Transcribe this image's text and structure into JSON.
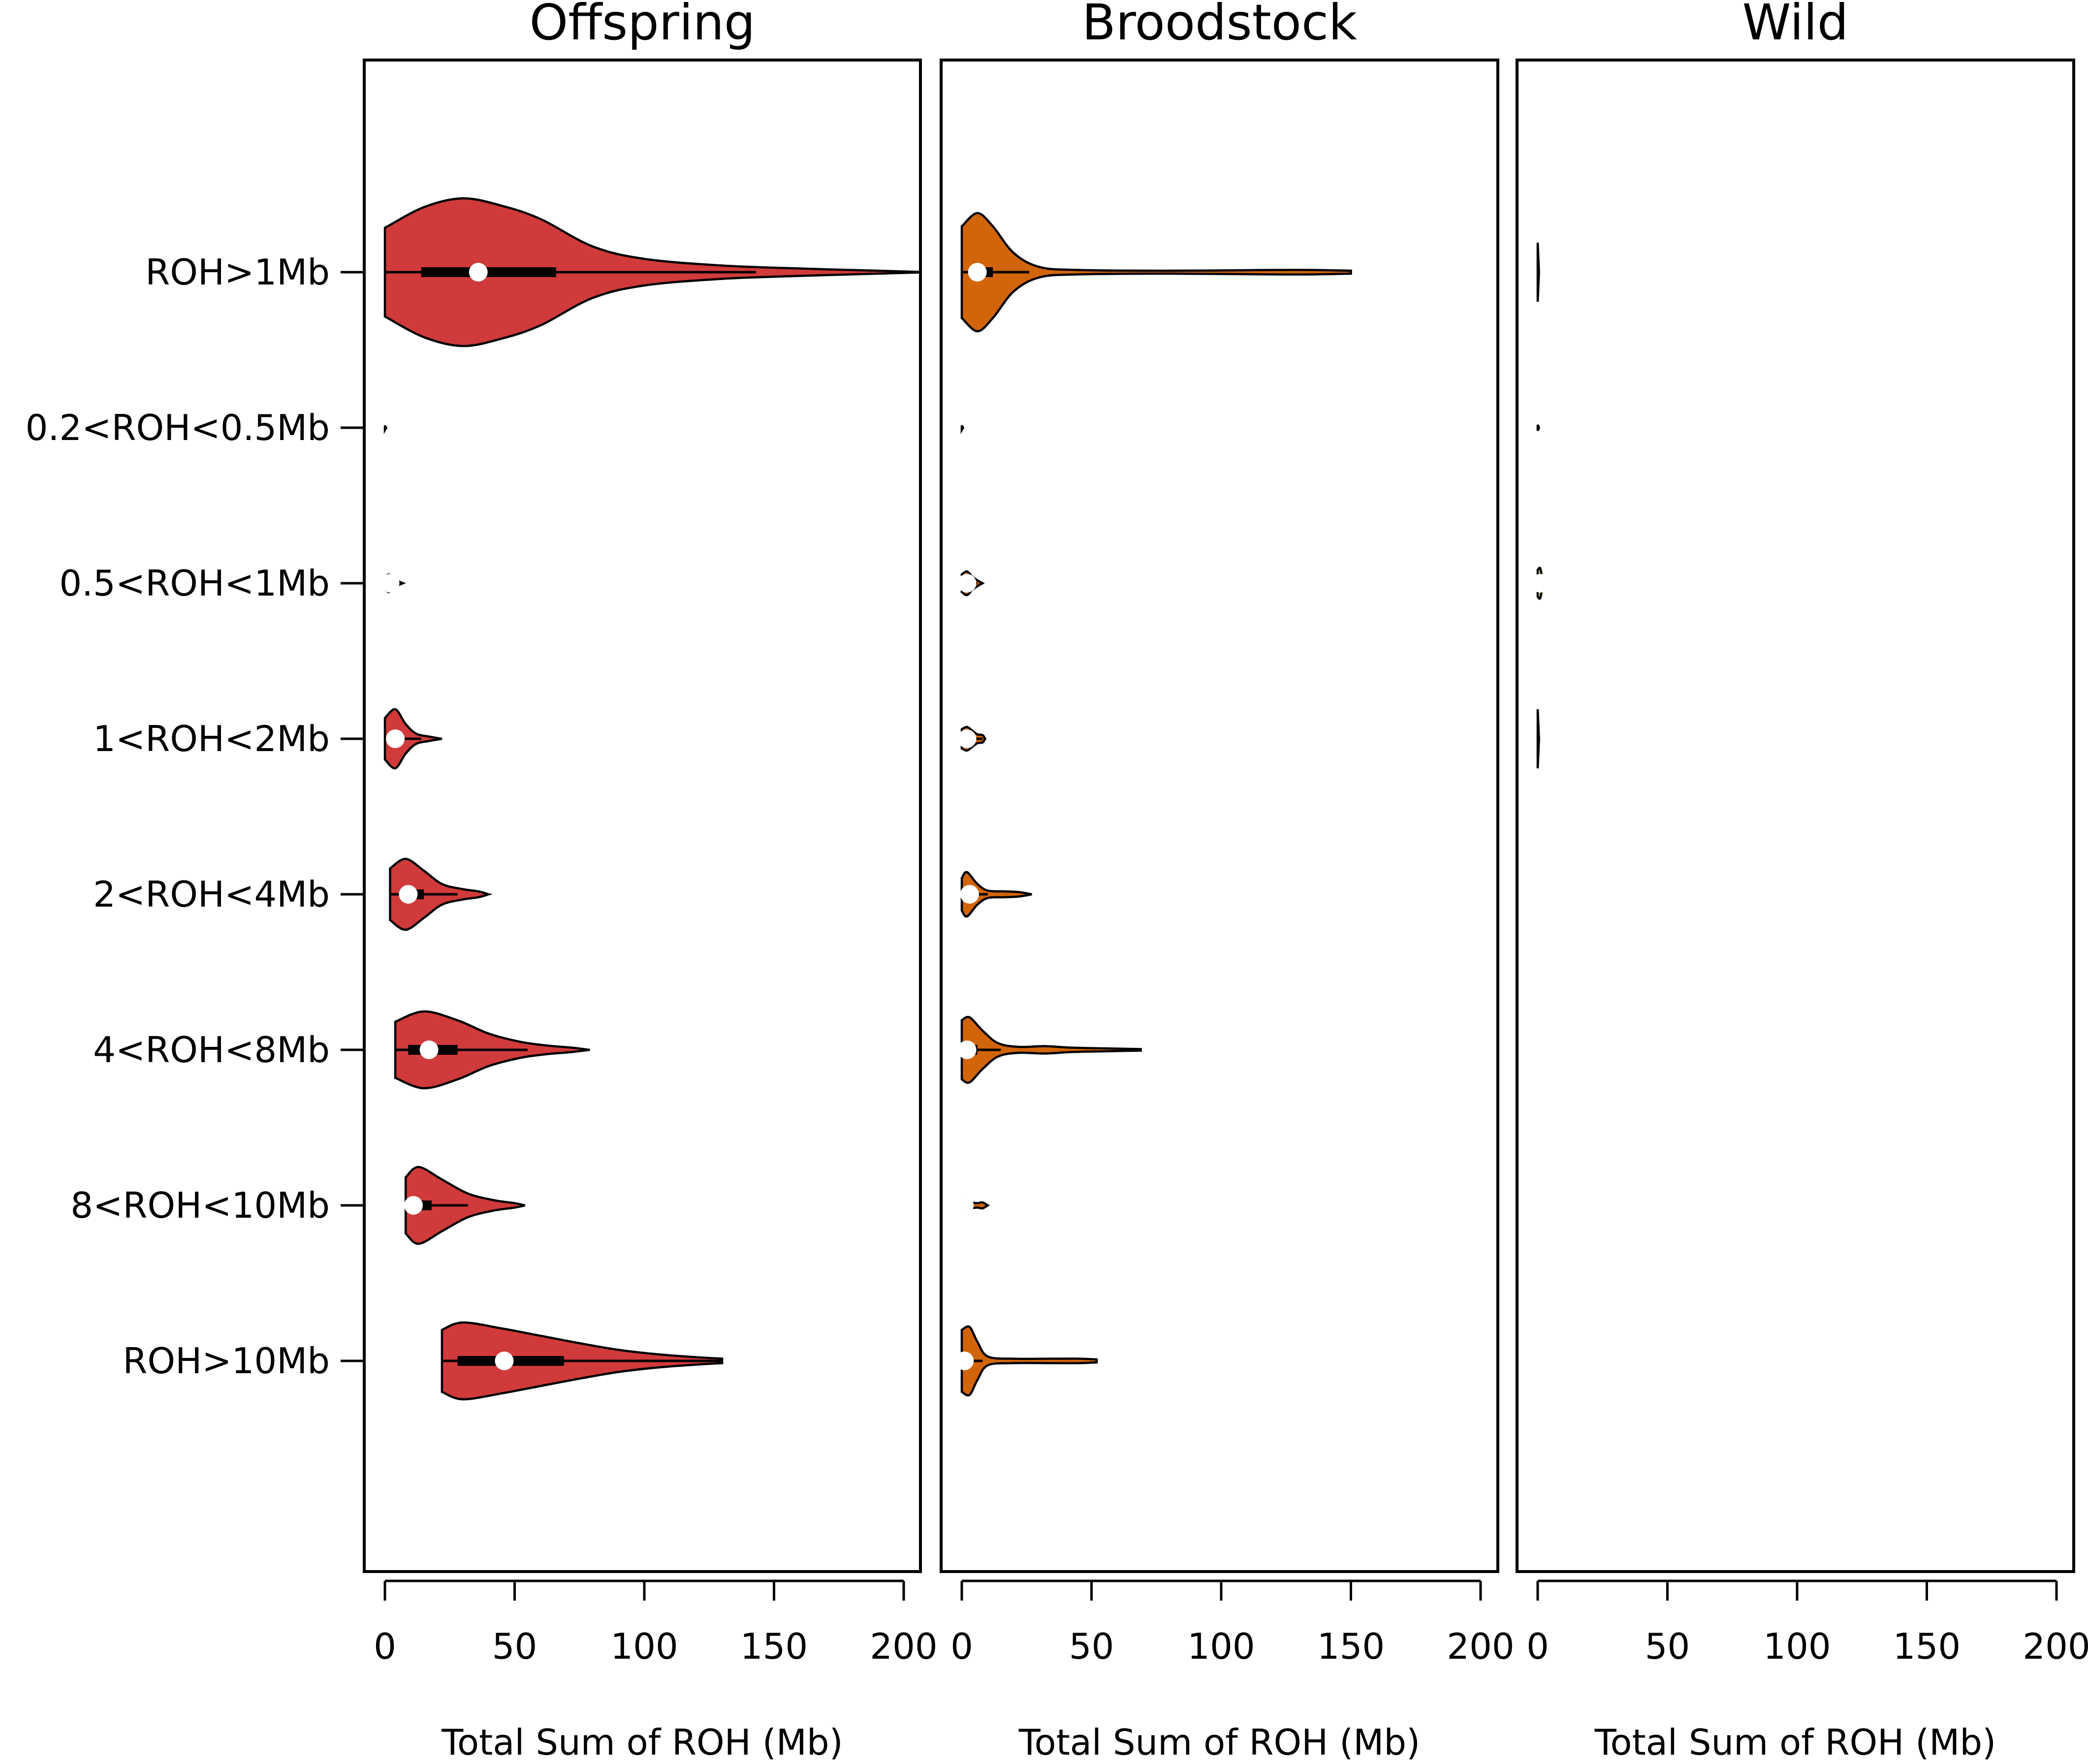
{
  "chart_data": {
    "type": "violin",
    "categories": [
      "ROH>1Mb",
      "0.2<ROH<0.5Mb",
      "0.5<ROH<1Mb",
      "1<ROH<2Mb",
      "2<ROH<4Mb",
      "4<ROH<8Mb",
      "8<ROH<10Mb",
      "ROH>10Mb"
    ],
    "xlim": [
      -8,
      205
    ],
    "x_ticks": [
      0,
      50,
      100,
      150,
      200
    ],
    "grid": false,
    "legend": "none",
    "panels": [
      {
        "title": "Offspring",
        "xlabel": "Total Sum of ROH (Mb)",
        "color": "#d13a3a",
        "violins": [
          {
            "category": "ROH>1Mb",
            "min": 0,
            "max": 210,
            "q1": 14,
            "median": 36,
            "q3": 66,
            "whisker_low": 0,
            "whisker_high": 143,
            "profile": [
              [
                0,
                0.6
              ],
              [
                15,
                0.88
              ],
              [
                30,
                1.0
              ],
              [
                45,
                0.9
              ],
              [
                60,
                0.72
              ],
              [
                80,
                0.35
              ],
              [
                100,
                0.18
              ],
              [
                130,
                0.09
              ],
              [
                160,
                0.05
              ],
              [
                190,
                0.02
              ],
              [
                210,
                0.0
              ]
            ]
          },
          {
            "category": "0.2<ROH<0.5Mb",
            "min": 0,
            "max": 0.5,
            "q1": 0,
            "median": 0,
            "q3": 0,
            "whisker_low": 0,
            "whisker_high": 0,
            "profile": [
              [
                0,
                0.03
              ],
              [
                0.5,
                0.0
              ]
            ]
          },
          {
            "category": "0.5<ROH<1Mb",
            "min": 0,
            "max": 7,
            "q1": 1,
            "median": 2,
            "q3": 3,
            "whisker_low": 0,
            "whisker_high": 6,
            "profile": [
              [
                0,
                0.08
              ],
              [
                1.5,
                0.12
              ],
              [
                3,
                0.08
              ],
              [
                5,
                0.03
              ],
              [
                7,
                0.0
              ]
            ]
          },
          {
            "category": "1<ROH<2Mb",
            "min": 0,
            "max": 22,
            "q1": 2,
            "median": 4,
            "q3": 7,
            "whisker_low": 0,
            "whisker_high": 14,
            "profile": [
              [
                0,
                0.28
              ],
              [
                4,
                0.4
              ],
              [
                8,
                0.2
              ],
              [
                12,
                0.07
              ],
              [
                17,
                0.03
              ],
              [
                22,
                0.0
              ]
            ]
          },
          {
            "category": "2<ROH<4Mb",
            "min": 2,
            "max": 40,
            "q1": 6,
            "median": 9,
            "q3": 15,
            "whisker_low": 2,
            "whisker_high": 28,
            "profile": [
              [
                2,
                0.35
              ],
              [
                8,
                0.48
              ],
              [
                15,
                0.32
              ],
              [
                22,
                0.14
              ],
              [
                30,
                0.07
              ],
              [
                36,
                0.04
              ],
              [
                40,
                0.0
              ]
            ]
          },
          {
            "category": "4<ROH<8Mb",
            "min": 4,
            "max": 79,
            "q1": 9,
            "median": 17,
            "q3": 28,
            "whisker_low": 4,
            "whisker_high": 55,
            "profile": [
              [
                4,
                0.38
              ],
              [
                15,
                0.52
              ],
              [
                28,
                0.4
              ],
              [
                40,
                0.22
              ],
              [
                52,
                0.11
              ],
              [
                62,
                0.06
              ],
              [
                72,
                0.03
              ],
              [
                79,
                0.0
              ]
            ]
          },
          {
            "category": "8<ROH<10Mb",
            "min": 8,
            "max": 54,
            "q1": 10,
            "median": 11,
            "q3": 18,
            "whisker_low": 8,
            "whisker_high": 32,
            "profile": [
              [
                8,
                0.38
              ],
              [
                13,
                0.52
              ],
              [
                22,
                0.35
              ],
              [
                32,
                0.16
              ],
              [
                42,
                0.07
              ],
              [
                50,
                0.03
              ],
              [
                54,
                0.0
              ]
            ]
          },
          {
            "category": "ROH>10Mb",
            "min": 22,
            "max": 130,
            "q1": 28,
            "median": 46,
            "q3": 69,
            "whisker_low": 22,
            "whisker_high": 130,
            "profile": [
              [
                22,
                0.42
              ],
              [
                30,
                0.52
              ],
              [
                45,
                0.44
              ],
              [
                60,
                0.34
              ],
              [
                75,
                0.24
              ],
              [
                90,
                0.15
              ],
              [
                105,
                0.09
              ],
              [
                120,
                0.05
              ],
              [
                130,
                0.03
              ]
            ]
          }
        ]
      },
      {
        "title": "Broodstock",
        "xlabel": "Total Sum of ROH (Mb)",
        "color": "#d2640a",
        "violins": [
          {
            "category": "ROH>1Mb",
            "min": 0,
            "max": 150,
            "q1": 3,
            "median": 6,
            "q3": 12,
            "whisker_low": 0,
            "whisker_high": 26,
            "profile": [
              [
                0,
                0.62
              ],
              [
                6,
                0.8
              ],
              [
                12,
                0.62
              ],
              [
                20,
                0.26
              ],
              [
                30,
                0.07
              ],
              [
                45,
                0.03
              ],
              [
                80,
                0.02
              ],
              [
                120,
                0.03
              ],
              [
                135,
                0.03
              ],
              [
                150,
                0.02
              ]
            ]
          },
          {
            "category": "0.2<ROH<0.5Mb",
            "min": 0,
            "max": 0.5,
            "q1": 0,
            "median": 0,
            "q3": 0,
            "whisker_low": 0,
            "whisker_high": 0,
            "profile": [
              [
                0,
                0.03
              ],
              [
                0.5,
                0.0
              ]
            ]
          },
          {
            "category": "0.5<ROH<1Mb",
            "min": 0,
            "max": 8,
            "q1": 1,
            "median": 2,
            "q3": 3,
            "whisker_low": 0,
            "whisker_high": 6,
            "profile": [
              [
                0,
                0.12
              ],
              [
                2,
                0.16
              ],
              [
                4,
                0.09
              ],
              [
                6,
                0.04
              ],
              [
                8,
                0.0
              ]
            ]
          },
          {
            "category": "1<ROH<2Mb",
            "min": 0,
            "max": 9,
            "q1": 1,
            "median": 2,
            "q3": 4,
            "whisker_low": 0,
            "whisker_high": 8,
            "profile": [
              [
                0,
                0.13
              ],
              [
                2,
                0.16
              ],
              [
                4,
                0.11
              ],
              [
                6,
                0.06
              ],
              [
                8,
                0.05
              ],
              [
                9,
                0.0
              ]
            ]
          },
          {
            "category": "2<ROH<4Mb",
            "min": 0,
            "max": 27,
            "q1": 1,
            "median": 3,
            "q3": 5,
            "whisker_low": 0,
            "whisker_high": 10,
            "profile": [
              [
                0,
                0.22
              ],
              [
                2,
                0.3
              ],
              [
                6,
                0.14
              ],
              [
                10,
                0.05
              ],
              [
                16,
                0.04
              ],
              [
                22,
                0.03
              ],
              [
                27,
                0.0
              ]
            ]
          },
          {
            "category": "4<ROH<8Mb",
            "min": 0,
            "max": 69,
            "q1": 1,
            "median": 2,
            "q3": 6,
            "whisker_low": 0,
            "whisker_high": 15,
            "profile": [
              [
                0,
                0.4
              ],
              [
                3,
                0.44
              ],
              [
                8,
                0.26
              ],
              [
                14,
                0.09
              ],
              [
                22,
                0.04
              ],
              [
                32,
                0.05
              ],
              [
                42,
                0.03
              ],
              [
                55,
                0.02
              ],
              [
                69,
                0.01
              ]
            ]
          },
          {
            "category": "8<ROH<10Mb",
            "min": 0,
            "max": 10,
            "q1": 0,
            "median": 1,
            "q3": 2,
            "whisker_low": 0,
            "whisker_high": 4,
            "profile": [
              [
                0,
                0.1
              ],
              [
                2,
                0.08
              ],
              [
                4,
                0.04
              ],
              [
                6,
                0.03
              ],
              [
                8,
                0.04
              ],
              [
                10,
                0.0
              ]
            ]
          },
          {
            "category": "ROH>10Mb",
            "min": 0,
            "max": 52,
            "q1": 0,
            "median": 1,
            "q3": 3,
            "whisker_low": 0,
            "whisker_high": 8,
            "profile": [
              [
                0,
                0.42
              ],
              [
                3,
                0.46
              ],
              [
                6,
                0.26
              ],
              [
                10,
                0.06
              ],
              [
                20,
                0.03
              ],
              [
                35,
                0.03
              ],
              [
                45,
                0.03
              ],
              [
                52,
                0.02
              ]
            ]
          }
        ]
      },
      {
        "title": "Wild",
        "xlabel": "Total Sum of ROH (Mb)",
        "color": "#c8dc82",
        "violins": [
          {
            "category": "ROH>1Mb",
            "min": 0,
            "max": 0.5,
            "q1": 0,
            "median": 0,
            "q3": 0,
            "whisker_low": 0,
            "whisker_high": 0,
            "profile": [
              [
                0,
                0.4
              ],
              [
                0.5,
                0.0
              ]
            ]
          },
          {
            "category": "0.2<ROH<0.5Mb",
            "min": 0,
            "max": 0.5,
            "q1": 0,
            "median": 0,
            "q3": 0,
            "whisker_low": 0,
            "whisker_high": 0,
            "profile": [
              [
                0,
                0.04
              ],
              [
                0.5,
                0.0
              ]
            ]
          },
          {
            "category": "0.5<ROH<1Mb",
            "min": 0,
            "max": 2,
            "q1": 0,
            "median": 1,
            "q3": 1,
            "whisker_low": 0,
            "whisker_high": 2,
            "profile": [
              [
                0,
                0.18
              ],
              [
                1,
                0.2
              ],
              [
                2,
                0.0
              ]
            ]
          },
          {
            "category": "1<ROH<2Mb",
            "min": 0,
            "max": 0.5,
            "q1": 0,
            "median": 0,
            "q3": 0,
            "whisker_low": 0,
            "whisker_high": 0,
            "profile": [
              [
                0,
                0.4
              ],
              [
                0.5,
                0.0
              ]
            ]
          },
          {
            "category": "2<ROH<4Mb",
            "min": 0,
            "max": 0,
            "q1": 0,
            "median": 0,
            "q3": 0,
            "whisker_low": 0,
            "whisker_high": 0,
            "profile": []
          },
          {
            "category": "4<ROH<8Mb",
            "min": 0,
            "max": 0,
            "q1": 0,
            "median": 0,
            "q3": 0,
            "whisker_low": 0,
            "whisker_high": 0,
            "profile": []
          },
          {
            "category": "8<ROH<10Mb",
            "min": 0,
            "max": 0,
            "q1": 0,
            "median": 0,
            "q3": 0,
            "whisker_low": 0,
            "whisker_high": 0,
            "profile": []
          },
          {
            "category": "ROH>10Mb",
            "min": 0,
            "max": 0,
            "q1": 0,
            "median": 0,
            "q3": 0,
            "whisker_low": 0,
            "whisker_high": 0,
            "profile": []
          }
        ]
      }
    ]
  }
}
